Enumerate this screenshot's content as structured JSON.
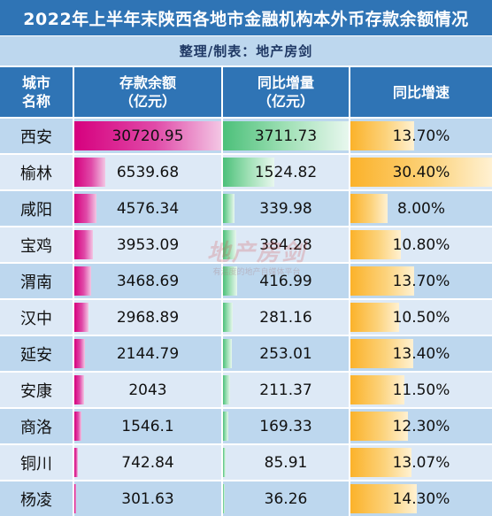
{
  "header": {
    "title": "2022年上半年末陕西各地市金融机构本外币存款余额情况",
    "subtitle": "整理/制表：地产房剑"
  },
  "columns": {
    "city_line1": "城市",
    "city_line2": "名称",
    "deposit_line1": "存款余额",
    "deposit_line2": "（亿元）",
    "growth_line1": "同比增量",
    "growth_line2": "（亿元）",
    "rate": "同比增速"
  },
  "watermark": {
    "main": "地产房剑",
    "sub": "有温度的地产自媒体平台"
  },
  "colors": {
    "title_bg": "#2f74b5",
    "subtitle_bg": "#bdd7ee",
    "deposit_bar": "#d6007e",
    "growth_bar": "#4cc07a",
    "rate_bar": "#fbb22a"
  },
  "chart_data": {
    "type": "table",
    "rows": [
      {
        "city": "西安",
        "deposit": "30720.95",
        "growth": "3711.73",
        "rate": "13.70%"
      },
      {
        "city": "榆林",
        "deposit": "6539.68",
        "growth": "1524.82",
        "rate": "30.40%"
      },
      {
        "city": "咸阳",
        "deposit": "4576.34",
        "growth": "339.98",
        "rate": "8.00%"
      },
      {
        "city": "宝鸡",
        "deposit": "3953.09",
        "growth": "384.28",
        "rate": "10.80%"
      },
      {
        "city": "渭南",
        "deposit": "3468.69",
        "growth": "416.99",
        "rate": "13.70%"
      },
      {
        "city": "汉中",
        "deposit": "2968.89",
        "growth": "281.16",
        "rate": "10.50%"
      },
      {
        "city": "延安",
        "deposit": "2144.79",
        "growth": "253.01",
        "rate": "13.40%"
      },
      {
        "city": "安康",
        "deposit": "2043",
        "growth": "211.37",
        "rate": "11.50%"
      },
      {
        "city": "商洛",
        "deposit": "1546.1",
        "growth": "169.33",
        "rate": "12.30%"
      },
      {
        "city": "铜川",
        "deposit": "742.84",
        "growth": "85.91",
        "rate": "13.07%"
      },
      {
        "city": "杨凌",
        "deposit": "301.63",
        "growth": "36.26",
        "rate": "14.30%"
      }
    ]
  }
}
